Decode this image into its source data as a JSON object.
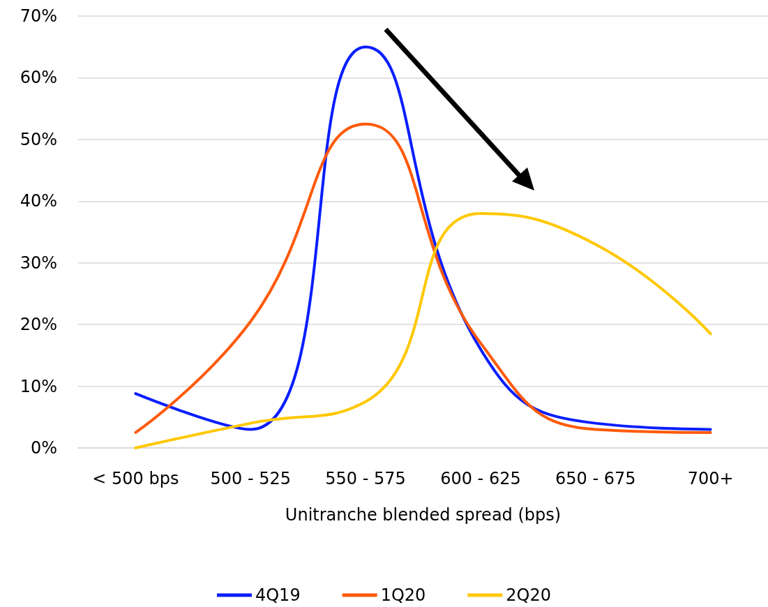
{
  "chart_data": {
    "type": "line",
    "xlabel": "Unitranche blended spread (bps)",
    "categories": [
      "< 500 bps",
      "500 - 525",
      "550 - 575",
      "600 - 625",
      "650 - 675",
      "700+"
    ],
    "series": [
      {
        "name": "4Q19",
        "color": "#0a1eff",
        "values": [
          8.8,
          3,
          65,
          16,
          4,
          3
        ]
      },
      {
        "name": "1Q20",
        "color": "#ff5a0a",
        "values": [
          2.5,
          20.5,
          52.5,
          17,
          3,
          2.5
        ]
      },
      {
        "name": "2Q20",
        "color": "#ffc800",
        "values": [
          0,
          4,
          7.5,
          38,
          33,
          18.5
        ]
      }
    ],
    "ylim": [
      0,
      70
    ],
    "yticks": [
      {
        "value": 0,
        "label": "0%"
      },
      {
        "value": 10,
        "label": "10%"
      },
      {
        "value": 20,
        "label": "20%"
      },
      {
        "value": 30,
        "label": "30%"
      },
      {
        "value": 40,
        "label": "40%"
      },
      {
        "value": 50,
        "label": "50%"
      },
      {
        "value": 60,
        "label": "60%"
      },
      {
        "value": 70,
        "label": "70%"
      }
    ],
    "grid": "y",
    "legend": "bottom",
    "marker": "none",
    "line_style": "solid"
  }
}
